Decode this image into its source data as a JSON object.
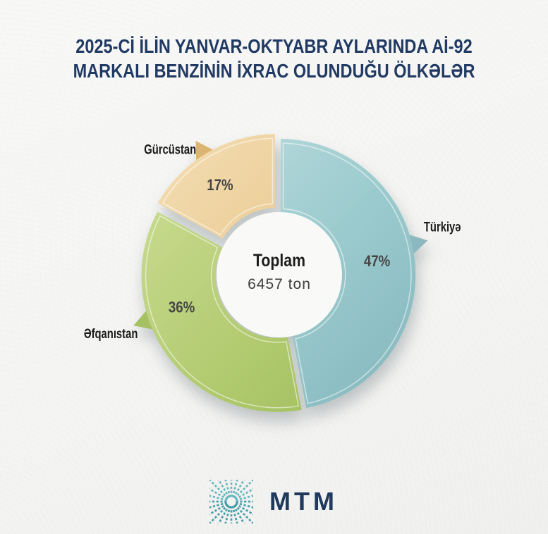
{
  "title": {
    "line1": "2025-Cİ İLİN YANVAR-OKTYABR AYLARINDA Aİ-92",
    "line2": "MARKALI BENZİNİN İXRAC OLUNDUĞU ÖLKƏLƏR"
  },
  "logo": {
    "text": "MTM"
  },
  "colors": {
    "bg": "#f5f5f3",
    "title": "#203a63",
    "label": "#1b1b1b",
    "percent": "#454545",
    "center_title": "#1d1d1d",
    "center_value": "#3e3e3e",
    "logo_text": "#203a5e",
    "logo_mark_light": "#66b9c0",
    "logo_mark_dark": "#459fa9",
    "shadow": "#7d868b"
  },
  "chart_data": {
    "type": "pie",
    "title": "2025-Cİ İLİN YANVAR-OKTYABR AYLARINDA Aİ-92 MARKALI BENZİNİN İXRAC OLUNDUĞU ÖLKƏLƏR",
    "center_label": "Toplam",
    "center_value": "6457 ton",
    "total": 6457,
    "unit": "ton",
    "legend_position": "around-slices",
    "start_angle_deg": -90,
    "direction": "clockwise",
    "slices": [
      {
        "label": "Türkiyə",
        "value": 47,
        "percent_label": "47%",
        "color": "#9acacd",
        "color_light": "#c2dfe1",
        "color_dark": "#82b5bc",
        "arrow_color": "#8cb9bf"
      },
      {
        "label": "Əfqanıstan",
        "value": 36,
        "percent_label": "36%",
        "color": "#b2cb70",
        "color_light": "#cdde97",
        "color_dark": "#9aba57",
        "arrow_color": "#a6c163"
      },
      {
        "label": "Gürcüstan",
        "value": 17,
        "percent_label": "17%",
        "color": "#e9c88e",
        "color_light": "#f4dfb6",
        "color_dark": "#d9b16b",
        "arrow_color": "#ddb572"
      }
    ]
  }
}
